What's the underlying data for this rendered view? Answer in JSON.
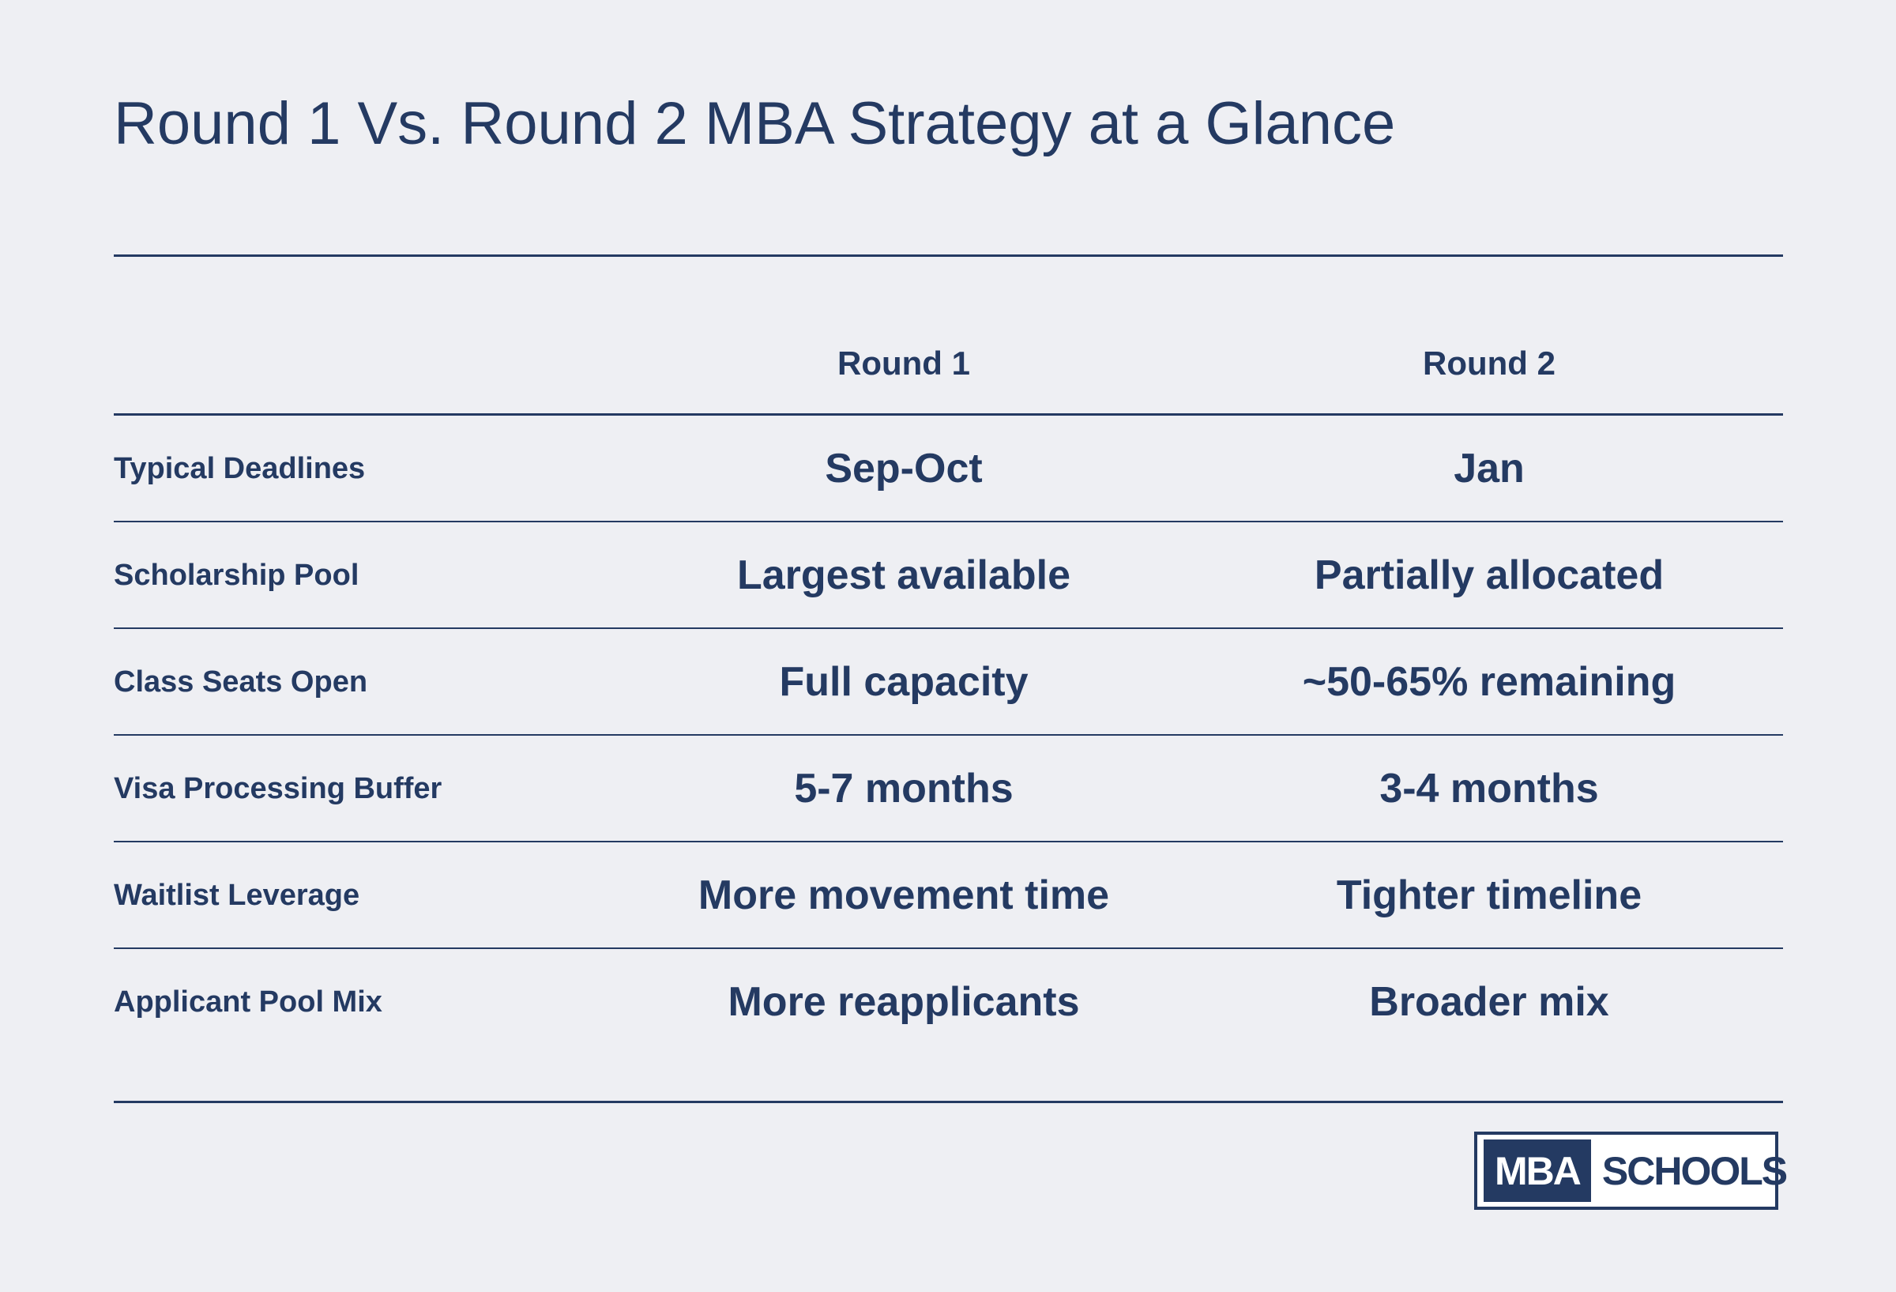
{
  "title": "Round 1 Vs. Round 2 MBA Strategy at a Glance",
  "table": {
    "columns": [
      "Round 1",
      "Round 2"
    ],
    "rows": [
      {
        "label": "Typical Deadlines",
        "round1": "Sep-Oct",
        "round2": "Jan"
      },
      {
        "label": "Scholarship Pool",
        "round1": "Largest available",
        "round2": "Partially allocated"
      },
      {
        "label": "Class Seats Open",
        "round1": "Full capacity",
        "round2": "~50-65% remaining"
      },
      {
        "label": "Visa Processing Buffer",
        "round1": "5-7 months",
        "round2": "3-4 months"
      },
      {
        "label": "Waitlist Leverage",
        "round1": "More movement time",
        "round2": "Tighter timeline"
      },
      {
        "label": "Applicant Pool Mix",
        "round1": "More reapplicants",
        "round2": "Broader mix"
      }
    ]
  },
  "logo": {
    "part1": "MBA",
    "part2": "SCHOOLS"
  },
  "colors": {
    "background": "#eeeff3",
    "text": "#243a62",
    "accent": "#243a62"
  }
}
